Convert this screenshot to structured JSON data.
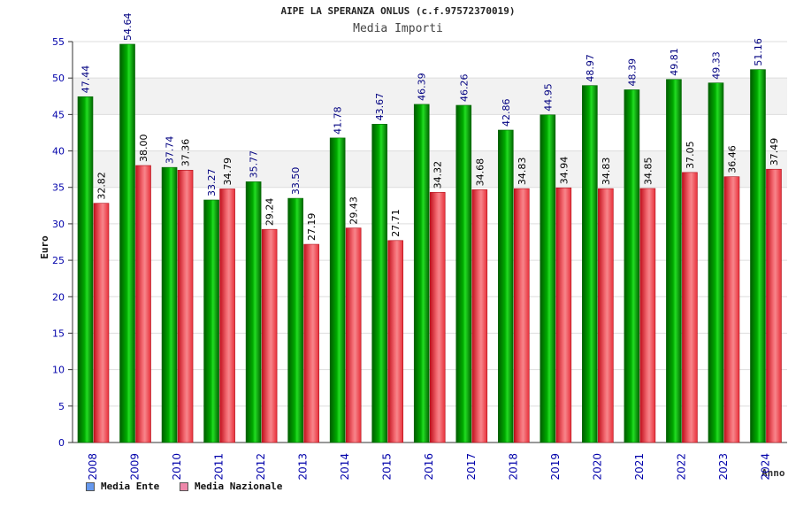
{
  "title": "AIPE LA SPERANZA ONLUS (c.f.97572370019)",
  "subtitle": "Media Importi",
  "legend": {
    "ente_label": "Media Ente",
    "ente_swatch": "#6699ee",
    "naz_label": "Media Nazionale",
    "naz_swatch": "#ee88aa"
  },
  "colors": {
    "ente_bar": "#00aa00",
    "naz_bar": "#e8303a",
    "value_label_ente": "#000080",
    "value_label_naz": "#000000",
    "tick_label": "#0000aa",
    "band": "#f2f2f2"
  },
  "chart_data": {
    "type": "bar",
    "title": "AIPE LA SPERANZA ONLUS (c.f.97572370019)",
    "subtitle": "Media Importi",
    "xlabel": "Anno",
    "ylabel": "Euro",
    "ylim": [
      0,
      55
    ],
    "yticks": [
      0,
      5,
      10,
      15,
      20,
      25,
      30,
      35,
      40,
      45,
      50,
      55
    ],
    "categories": [
      "2008",
      "2009",
      "2010",
      "2011",
      "2012",
      "2013",
      "2014",
      "2015",
      "2016",
      "2017",
      "2018",
      "2019",
      "2020",
      "2021",
      "2022",
      "2023",
      "2024"
    ],
    "series": [
      {
        "name": "Media Ente",
        "values": [
          47.44,
          54.64,
          37.74,
          33.27,
          35.77,
          33.5,
          41.78,
          43.67,
          46.39,
          46.26,
          42.86,
          44.95,
          48.97,
          48.39,
          49.81,
          49.33,
          51.16
        ]
      },
      {
        "name": "Media Nazionale",
        "values": [
          32.82,
          38.0,
          37.36,
          34.79,
          29.24,
          27.19,
          29.43,
          27.71,
          34.32,
          34.68,
          34.83,
          34.94,
          34.83,
          34.85,
          37.05,
          36.46,
          37.49
        ]
      }
    ],
    "value_labels": [
      [
        "47.44",
        "54.64",
        "37.74",
        "33.27",
        "35.77",
        "33.50",
        "41.78",
        "43.67",
        "46.39",
        "46.26",
        "42.86",
        "44.95",
        "48.97",
        "48.39",
        "49.81",
        "49.33",
        "51.16"
      ],
      [
        "32.82",
        "38.00",
        "37.36",
        "34.79",
        "29.24",
        "27.19",
        "29.43",
        "27.71",
        "34.32",
        "34.68",
        "34.83",
        "34.94",
        "34.83",
        "34.85",
        "37.05",
        "36.46",
        "37.49"
      ]
    ],
    "grid": true,
    "legend_position": "bottom-left"
  }
}
